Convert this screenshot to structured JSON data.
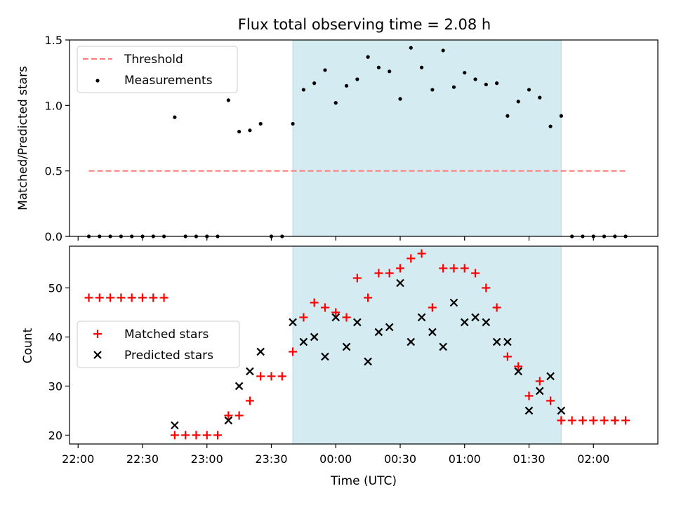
{
  "chart_data": [
    {
      "type": "scatter",
      "title": "Flux total observing time = 2.08 h",
      "xlabel": "",
      "ylabel": "Matched/Predicted stars",
      "xlim": [
        "21:56",
        "02:30"
      ],
      "ylim": [
        0,
        1.5
      ],
      "yticks": [
        "0.0",
        "0.5",
        "1.0",
        "1.5"
      ],
      "grid": false,
      "legend_position": "top-left",
      "shaded_interval": [
        "23:40",
        "01:45"
      ],
      "shade_color": "#d4ebf1",
      "series": [
        {
          "name": "Threshold",
          "kind": "dashed-line",
          "color": "#ff7f7f",
          "x": [
            "22:05",
            "02:15"
          ],
          "y": [
            0.5,
            0.5
          ]
        },
        {
          "name": "Measurements",
          "kind": "points",
          "color": "#000000",
          "x": [
            "22:05",
            "22:10",
            "22:15",
            "22:20",
            "22:25",
            "22:30",
            "22:35",
            "22:40",
            "22:45",
            "22:50",
            "22:55",
            "23:00",
            "23:05",
            "23:10",
            "23:15",
            "23:20",
            "23:25",
            "23:30",
            "23:35",
            "23:40",
            "23:45",
            "23:50",
            "23:55",
            "00:00",
            "00:05",
            "00:10",
            "00:15",
            "00:20",
            "00:25",
            "00:30",
            "00:35",
            "00:40",
            "00:45",
            "00:50",
            "00:55",
            "01:00",
            "01:05",
            "01:10",
            "01:15",
            "01:20",
            "01:25",
            "01:30",
            "01:35",
            "01:40",
            "01:45",
            "01:50",
            "01:55",
            "02:00",
            "02:05",
            "02:10",
            "02:15"
          ],
          "y": [
            0,
            0,
            0,
            0,
            0,
            0,
            0,
            0,
            0.91,
            0,
            0,
            0,
            0,
            1.04,
            0.8,
            0.81,
            0.86,
            0,
            0,
            0.86,
            1.12,
            1.17,
            1.27,
            1.02,
            1.15,
            1.2,
            1.37,
            1.29,
            1.26,
            1.05,
            1.44,
            1.29,
            1.12,
            1.42,
            1.14,
            1.25,
            1.2,
            1.16,
            1.17,
            0.92,
            1.03,
            1.12,
            1.06,
            0.84,
            0.92,
            0,
            0,
            0,
            0,
            0,
            0
          ]
        }
      ]
    },
    {
      "type": "scatter",
      "title": "",
      "xlabel": "Time (UTC)",
      "ylabel": "Count",
      "xlim": [
        "21:56",
        "02:30"
      ],
      "ylim": [
        18.2,
        58.5
      ],
      "xticks": [
        "22:00",
        "22:30",
        "23:00",
        "23:30",
        "00:00",
        "00:30",
        "01:00",
        "01:30",
        "02:00"
      ],
      "yticks": [
        "20",
        "30",
        "40",
        "50"
      ],
      "grid": false,
      "legend_position": "center-left",
      "shaded_interval": [
        "23:40",
        "01:45"
      ],
      "shade_color": "#d4ebf1",
      "series": [
        {
          "name": "Matched stars",
          "kind": "plus",
          "color": "#ff0000",
          "x": [
            "22:05",
            "22:10",
            "22:15",
            "22:20",
            "22:25",
            "22:30",
            "22:35",
            "22:40",
            "22:45",
            "22:50",
            "22:55",
            "23:00",
            "23:05",
            "23:10",
            "23:15",
            "23:20",
            "23:25",
            "23:30",
            "23:35",
            "23:40",
            "23:45",
            "23:50",
            "23:55",
            "00:00",
            "00:05",
            "00:10",
            "00:15",
            "00:20",
            "00:25",
            "00:30",
            "00:35",
            "00:40",
            "00:45",
            "00:50",
            "00:55",
            "01:00",
            "01:05",
            "01:10",
            "01:15",
            "01:20",
            "01:25",
            "01:30",
            "01:35",
            "01:40",
            "01:45",
            "01:50",
            "01:55",
            "02:00",
            "02:05",
            "02:10",
            "02:15"
          ],
          "y": [
            48,
            48,
            48,
            48,
            48,
            48,
            48,
            48,
            20,
            20,
            20,
            20,
            20,
            24,
            24,
            27,
            32,
            32,
            32,
            37,
            44,
            47,
            46,
            45,
            44,
            52,
            48,
            53,
            53,
            54,
            56,
            57,
            46,
            54,
            54,
            54,
            53,
            50,
            46,
            36,
            34,
            28,
            31,
            27,
            23,
            23,
            23,
            23,
            23,
            23,
            23
          ]
        },
        {
          "name": "Predicted stars",
          "kind": "x",
          "color": "#000000",
          "x": [
            "22:45",
            "23:10",
            "23:15",
            "23:20",
            "23:25",
            "23:40",
            "23:45",
            "23:50",
            "23:55",
            "00:00",
            "00:05",
            "00:10",
            "00:15",
            "00:20",
            "00:25",
            "00:30",
            "00:35",
            "00:40",
            "00:45",
            "00:50",
            "00:55",
            "01:00",
            "01:05",
            "01:10",
            "01:15",
            "01:20",
            "01:25",
            "01:30",
            "01:35",
            "01:40",
            "01:45"
          ],
          "y": [
            22,
            23,
            30,
            33,
            37,
            43,
            39,
            40,
            36,
            44,
            38,
            43,
            35,
            41,
            42,
            51,
            39,
            44,
            41,
            38,
            47,
            43,
            44,
            43,
            39,
            39,
            33,
            25,
            29,
            32,
            25
          ]
        }
      ]
    }
  ]
}
